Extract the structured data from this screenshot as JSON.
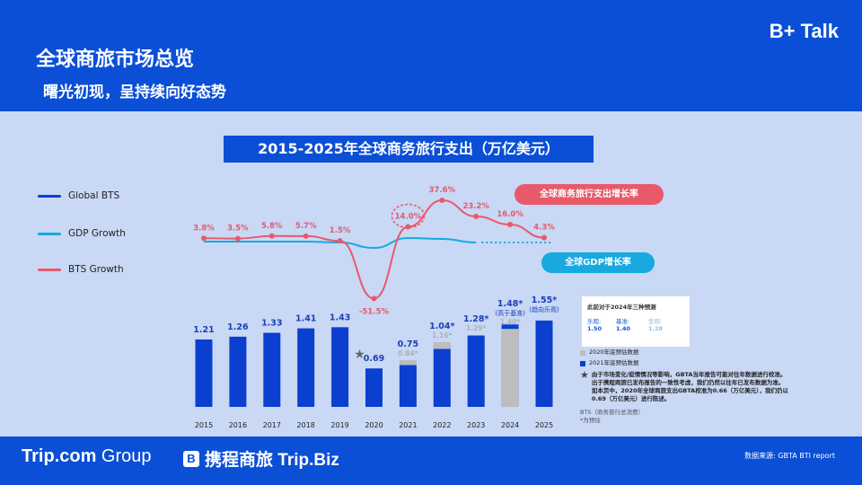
{
  "header": {
    "title": "全球商旅市场总览",
    "subtitle": "曙光初现，呈持续向好态势",
    "brand": "B+ Talk"
  },
  "footer": {
    "logo_tripcom_bold": "Trip.com",
    "logo_tripcom_rest": " Group",
    "logo_ctrip_mark": "B",
    "logo_ctrip": "携程商旅 Trip.Biz",
    "source": "数据来源:   GBTA BTI report"
  },
  "legend": {
    "bts": "Global BTS",
    "gdp": "GDP Growth",
    "bts_growth": "BTS Growth"
  },
  "pills": {
    "bts_growth": "全球商务旅行支出增长率",
    "gdp_growth": "全球GDP增长率"
  },
  "scenario_box": {
    "title": "此前对于2024年三种预测",
    "optimistic_label": "乐观:",
    "optimistic_value": "1.50",
    "base_label": "基准:",
    "base_value": "1.40",
    "pessimistic_label": "悲观:",
    "pessimistic_value": "1.28"
  },
  "notes": {
    "key_2020": "2020年底预估数据",
    "key_2021": "2021年底预估数据",
    "note_line1": "由于市场变化/疫情情况等影响，GBTA当年报告可能对往年数据进行校准。",
    "note_line2": "出于携程商旅已发布报告的一致性考虑，我们仍然以往年已发布数据为准。",
    "note_line3": "如本页中，2020年全球商旅支出GBTA校准为0.66（万亿美元），我们仍以",
    "note_line4": "0.69（万亿美元）进行陈述。",
    "footnote_line1": "BTS（商务旅行总消费）",
    "footnote_line2": "*为预估"
  },
  "colors": {
    "primary": "#0a4fd6",
    "bar": "#0a3fcf",
    "bar_old": "#bdbdbd",
    "bts_line": "#e8596a",
    "gdp_line": "#17a9e0",
    "background": "#c8d8f5"
  },
  "chart_data": {
    "type": "bar",
    "title": "2015-2025年全球商务旅行支出（万亿美元）",
    "categories": [
      "2015",
      "2016",
      "2017",
      "2018",
      "2019",
      "2020",
      "2021",
      "2022",
      "2023",
      "2024",
      "2025"
    ],
    "series": [
      {
        "name": "Global BTS",
        "values": [
          1.21,
          1.26,
          1.33,
          1.41,
          1.43,
          0.69,
          0.75,
          1.04,
          1.28,
          1.48,
          1.55
        ],
        "labels": [
          "1.21",
          "1.26",
          "1.33",
          "1.41",
          "1.43",
          "0.69",
          "0.75",
          "1.04*",
          "1.28*",
          "1.48*",
          "1.55*"
        ]
      },
      {
        "name": "2020年底预估数据",
        "values": [
          null,
          null,
          null,
          null,
          null,
          null,
          0.84,
          1.16,
          1.29,
          1.4,
          null
        ],
        "labels": [
          "",
          "",
          "",
          "",
          "",
          "",
          "0.84*",
          "1.16*",
          "1.29*",
          "1.40*",
          ""
        ]
      },
      {
        "name": "BTS Growth",
        "unit": "%",
        "values": [
          3.8,
          3.5,
          5.8,
          5.7,
          1.5,
          -51.5,
          14.0,
          37.6,
          23.2,
          16.0,
          4.3
        ],
        "labels": [
          "3.8%",
          "3.5%",
          "5.8%",
          "5.7%",
          "1.5%",
          "-51.5%",
          "14.0%",
          "37.6%",
          "23.2%",
          "16.0%",
          "4.3%"
        ]
      },
      {
        "name": "GDP Growth",
        "note": "relative shape only; no values printed"
      }
    ],
    "annotations": {
      "2024": "(高于基准)",
      "2025": "(趋向乐观)"
    },
    "star_year": "2020",
    "ylabel": "",
    "xlabel": ""
  }
}
